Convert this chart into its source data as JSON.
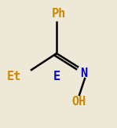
{
  "bg_color": "#ede8d8",
  "line_color": "#000000",
  "text_color_black": "#000000",
  "text_color_orange": "#cc8800",
  "text_color_blue": "#0000cc",
  "label_Ph": "Ph",
  "label_Et": "Et",
  "label_E": "E",
  "label_N": "N",
  "label_OH": "OH",
  "font_size": 11,
  "lw": 1.8
}
